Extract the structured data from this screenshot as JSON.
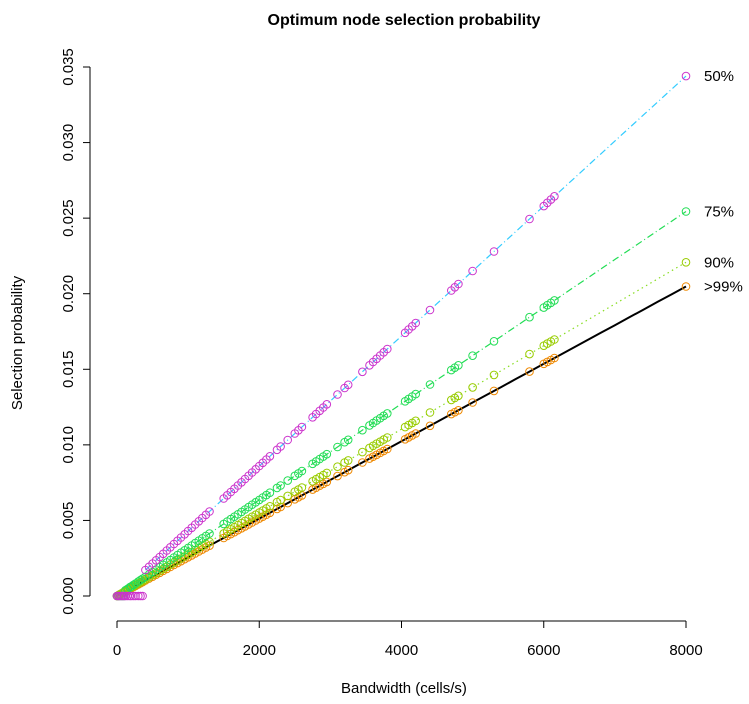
{
  "chart_data": {
    "type": "scatter",
    "title": "Optimum node selection probability",
    "xlabel": "Bandwidth (cells/s)",
    "ylabel": "Selection probability",
    "xlim": [
      0,
      8000
    ],
    "ylim": [
      0,
      0.035
    ],
    "x_ticks": [
      0,
      2000,
      4000,
      6000,
      8000
    ],
    "x_tick_labels": [
      "0",
      "2000",
      "4000",
      "6000",
      "8000"
    ],
    "y_ticks": [
      0,
      0.005,
      0.01,
      0.015,
      0.02,
      0.025,
      0.03,
      0.035
    ],
    "y_tick_labels": [
      "0.000",
      "0.005",
      "0.010",
      "0.015",
      "0.020",
      "0.025",
      "0.030",
      "0.035"
    ],
    "grid": false,
    "point_marker": "open-circle",
    "x": [
      0,
      20,
      40,
      60,
      80,
      100,
      120,
      150,
      180,
      200,
      230,
      260,
      300,
      330,
      360,
      400,
      450,
      500,
      550,
      600,
      650,
      700,
      750,
      800,
      850,
      900,
      950,
      1000,
      1050,
      1100,
      1150,
      1200,
      1250,
      1300,
      1500,
      1550,
      1600,
      1650,
      1700,
      1750,
      1800,
      1850,
      1900,
      1950,
      2000,
      2050,
      2100,
      2150,
      2250,
      2300,
      2400,
      2500,
      2550,
      2600,
      2750,
      2800,
      2850,
      2900,
      2950,
      3100,
      3200,
      3250,
      3450,
      3550,
      3600,
      3650,
      3700,
      3750,
      3800,
      4050,
      4100,
      4150,
      4200,
      4400,
      4700,
      4750,
      4800,
      5000,
      5300,
      5800,
      6000,
      6050,
      6100,
      6150,
      8000
    ],
    "series": [
      {
        "name": "50%",
        "label": "50%",
        "color": "#cc33cc",
        "line_color": "#33ccff",
        "dash": "dashdot",
        "alpha": 4.3e-06,
        "cutoff": 400,
        "bw_min": 400,
        "bw_max": 8000
      },
      {
        "name": "75%",
        "label": "75%",
        "color": "#22dd55",
        "line_color": "#22dd55",
        "dash": "dashdot",
        "alpha": 3.18e-06,
        "cutoff": 120,
        "bw_min": 120,
        "bw_max": 8000
      },
      {
        "name": "90%",
        "label": "90%",
        "color": "#99cc00",
        "line_color": "#88dd22",
        "dash": "dotted",
        "alpha": 2.76e-06,
        "cutoff": 40,
        "bw_min": 40,
        "bw_max": 8000
      },
      {
        "name": ">99%",
        "label": ">99%",
        "color": "#ee8800",
        "line_color": "#000000",
        "dash": "solid",
        "alpha": 2.56e-06,
        "cutoff": 0,
        "bw_min": 0,
        "bw_max": 8000
      }
    ]
  }
}
